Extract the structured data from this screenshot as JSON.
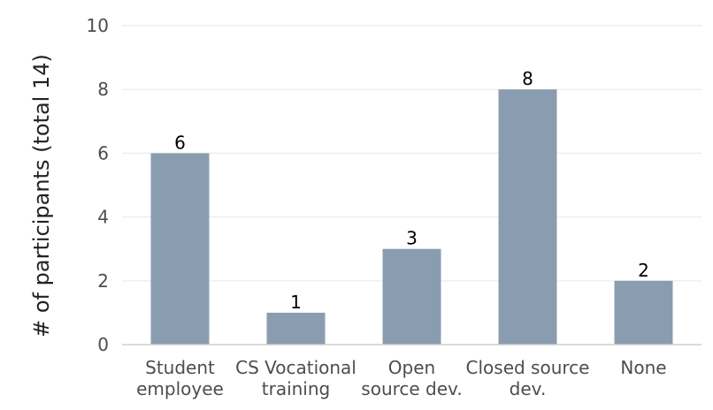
{
  "chart_data": {
    "type": "bar",
    "title": "",
    "xlabel": "",
    "ylabel": "# of participants (total 14)",
    "categories": [
      [
        "Student",
        "employee"
      ],
      [
        "CS Vocational",
        "training"
      ],
      [
        "Open",
        "source dev."
      ],
      [
        "Closed source",
        "dev."
      ],
      [
        "None"
      ]
    ],
    "values": [
      6,
      1,
      3,
      8,
      2
    ],
    "ylim": [
      0,
      10
    ],
    "yticks": [
      0,
      2,
      4,
      6,
      8,
      10
    ],
    "grid": true,
    "bar_color": "#8a9db0"
  }
}
